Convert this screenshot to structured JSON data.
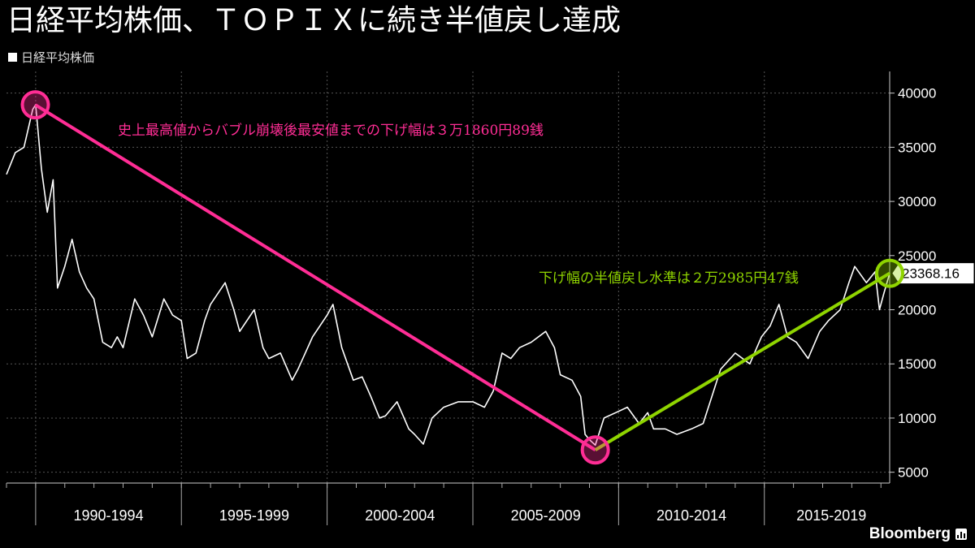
{
  "header": {
    "title": "日経平均株価、ＴＯＰＩＸに続き半値戻し達成"
  },
  "legend": {
    "label": "日経平均株価",
    "color": "#ffffff"
  },
  "annotations": {
    "decline": {
      "text": "史上最高値からバブル崩壊後最安値までの下げ幅は３万1860円89銭",
      "color": "#ff2d95"
    },
    "rebound": {
      "text": "下げ幅の半値戻し水準は２万2985円47銭",
      "color": "#8fd400"
    }
  },
  "last_value": {
    "label": "23368.16"
  },
  "brand": {
    "name": "Bloomberg",
    "icon": "bloomberg-terminal-icon"
  },
  "chart_data": {
    "type": "line",
    "title": "日経平均株価、ＴＯＰＩＸに続き半値戻し達成",
    "xlabel": "",
    "ylabel": "",
    "ylim": [
      4000,
      42000
    ],
    "xlim": [
      1989.0,
      2019.3
    ],
    "y_ticks": [
      5000,
      10000,
      15000,
      20000,
      25000,
      30000,
      35000,
      40000
    ],
    "x_period_labels": [
      "1990-1994",
      "1995-1999",
      "2000-2004",
      "2005-2009",
      "2010-2014",
      "2015-2019"
    ],
    "x_period_centers": [
      1992.5,
      1997.5,
      2002.5,
      2007.5,
      2012.5,
      2017.3
    ],
    "x_period_boundaries": [
      1990,
      1995,
      2000,
      2005,
      2010,
      2015
    ],
    "grid": true,
    "series": [
      {
        "name": "日経平均株価",
        "color": "#ffffff",
        "x": [
          1989.0,
          1989.3,
          1989.6,
          1989.9,
          1990.0,
          1990.2,
          1990.4,
          1990.6,
          1990.75,
          1991.0,
          1991.25,
          1991.5,
          1991.75,
          1992.0,
          1992.3,
          1992.6,
          1992.8,
          1993.0,
          1993.4,
          1993.7,
          1994.0,
          1994.4,
          1994.7,
          1995.0,
          1995.2,
          1995.5,
          1995.8,
          1996.0,
          1996.5,
          1996.8,
          1997.0,
          1997.5,
          1997.8,
          1998.0,
          1998.4,
          1998.8,
          1999.0,
          1999.5,
          2000.0,
          2000.2,
          2000.5,
          2000.9,
          2001.2,
          2001.5,
          2001.8,
          2002.0,
          2002.4,
          2002.8,
          2003.0,
          2003.3,
          2003.6,
          2004.0,
          2004.5,
          2005.0,
          2005.4,
          2005.7,
          2006.0,
          2006.3,
          2006.6,
          2007.0,
          2007.5,
          2007.8,
          2008.0,
          2008.4,
          2008.7,
          2008.85,
          2009.0,
          2009.2,
          2009.5,
          2009.9,
          2010.3,
          2010.7,
          2011.0,
          2011.2,
          2011.6,
          2012.0,
          2012.5,
          2012.9,
          2013.2,
          2013.5,
          2014.0,
          2014.5,
          2014.9,
          2015.2,
          2015.5,
          2015.8,
          2016.1,
          2016.5,
          2016.9,
          2017.2,
          2017.6,
          2017.9,
          2018.1,
          2018.5,
          2018.8,
          2018.95,
          2019.1,
          2019.3
        ],
        "values": [
          32500,
          34500,
          35000,
          38500,
          38916,
          33000,
          29000,
          32000,
          22000,
          24000,
          26500,
          23500,
          22000,
          21000,
          17000,
          16500,
          17500,
          16500,
          21000,
          19500,
          17500,
          21000,
          19500,
          19000,
          15500,
          16000,
          19000,
          20500,
          22500,
          20000,
          18000,
          20000,
          16500,
          15500,
          16000,
          13500,
          14500,
          17500,
          19500,
          20500,
          16500,
          13500,
          13800,
          12000,
          10000,
          10200,
          11500,
          9000,
          8500,
          7600,
          10000,
          11000,
          11500,
          11500,
          11000,
          12500,
          16000,
          15500,
          16500,
          17000,
          18000,
          16500,
          14000,
          13500,
          12000,
          8500,
          8000,
          7500,
          10000,
          10500,
          11000,
          9500,
          10500,
          9000,
          9000,
          8500,
          9000,
          9500,
          12000,
          14500,
          16000,
          15000,
          17500,
          18500,
          20500,
          17500,
          17000,
          15500,
          18000,
          19000,
          20000,
          22500,
          24000,
          22500,
          23500,
          20000,
          21500,
          23368
        ]
      }
    ],
    "overlay_lines": [
      {
        "name": "下げ幅",
        "color": "#ff2d95",
        "from": [
          1989.99,
          38916
        ],
        "to": [
          2009.2,
          7055
        ]
      },
      {
        "name": "半値戻し",
        "color": "#8fd400",
        "from": [
          2009.2,
          7055
        ],
        "to": [
          2019.3,
          23368
        ]
      }
    ],
    "last_value": 23368.16
  }
}
